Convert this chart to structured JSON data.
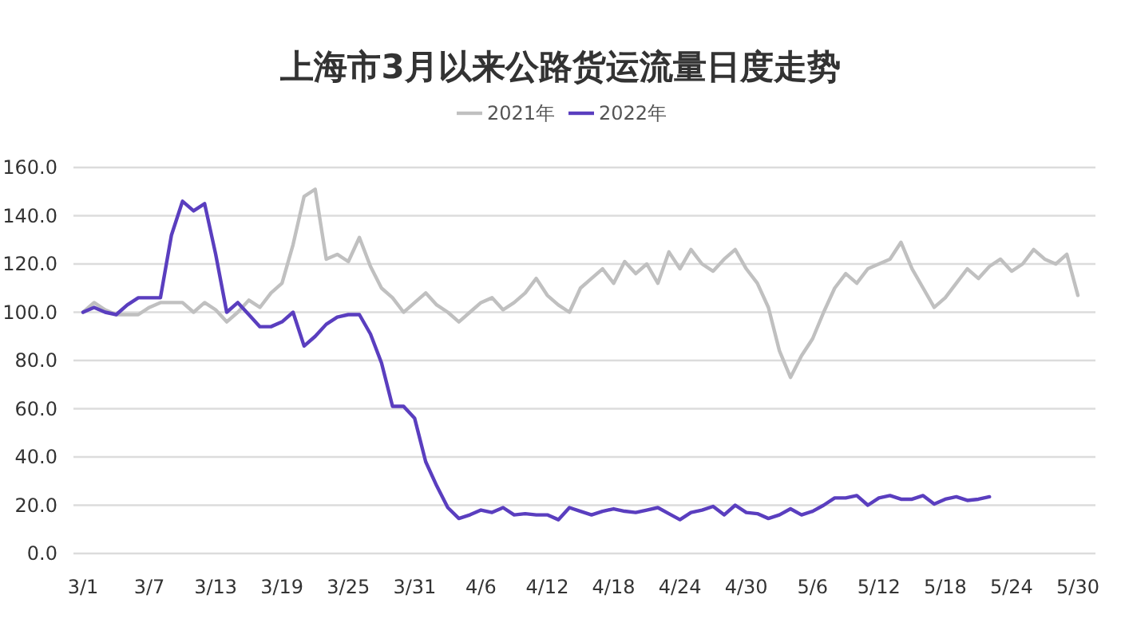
{
  "chart_data": {
    "type": "line",
    "title": "上海市3月以来公路货运流量日度走势",
    "categories": [
      "3/1",
      null,
      null,
      null,
      null,
      null,
      "3/7",
      null,
      null,
      null,
      null,
      null,
      "3/13",
      null,
      null,
      null,
      null,
      null,
      "3/19",
      null,
      null,
      null,
      null,
      null,
      "3/25",
      null,
      null,
      null,
      null,
      null,
      "3/31",
      null,
      null,
      null,
      null,
      null,
      "4/6",
      null,
      null,
      null,
      null,
      null,
      "4/12",
      null,
      null,
      null,
      null,
      null,
      "4/18",
      null,
      null,
      null,
      null,
      null,
      "4/24",
      null,
      null,
      null,
      null,
      null,
      "4/30",
      null,
      null,
      null,
      null,
      null,
      "5/6",
      null,
      null,
      null,
      null,
      null,
      "5/12",
      null,
      null,
      null,
      null,
      null,
      "5/18",
      null,
      null,
      null,
      null,
      null,
      "5/24",
      null,
      null,
      null,
      null,
      null,
      "5/30"
    ],
    "series": [
      {
        "name": "2021年",
        "color": "#c0c0c0",
        "values": [
          100,
          104,
          101,
          99,
          99,
          99,
          102,
          104,
          104,
          104,
          100,
          104,
          101,
          96,
          100,
          105,
          102,
          108,
          112,
          128,
          148,
          151,
          122,
          124,
          121,
          131,
          119,
          110,
          106,
          100,
          104,
          108,
          103,
          100,
          96,
          100,
          104,
          106,
          101,
          104,
          108,
          114,
          107,
          103,
          100,
          110,
          114,
          118,
          112,
          121,
          116,
          120,
          112,
          125,
          118,
          126,
          120,
          117,
          122,
          126,
          118,
          112,
          102,
          84,
          73,
          82,
          89,
          100,
          110,
          116,
          112,
          118,
          120,
          122,
          129,
          118,
          110,
          102,
          106,
          112,
          118,
          114,
          119,
          122,
          117,
          120,
          126,
          122,
          120,
          124,
          107
        ]
      },
      {
        "name": "2022年",
        "color": "#5a3ebf",
        "values": [
          100,
          102,
          100,
          99,
          103,
          106,
          106,
          106,
          132,
          146,
          142,
          145,
          124,
          100,
          104,
          99,
          94,
          94,
          96,
          100,
          86,
          90,
          95,
          98,
          99,
          99,
          91,
          79,
          61,
          61,
          56,
          38,
          28,
          19,
          14.5,
          16,
          18,
          17,
          19,
          16,
          16.5,
          16,
          16,
          14,
          19,
          17.5,
          16,
          17.5,
          18.5,
          17.5,
          17,
          18,
          19,
          16.5,
          14,
          17,
          18,
          19.5,
          16,
          20,
          17,
          16.5,
          14.5,
          16,
          18.5,
          16,
          17.5,
          20,
          23,
          23,
          24,
          20,
          23,
          24,
          22.5,
          22.5,
          24,
          20.5,
          22.5,
          23.5,
          22,
          22.5,
          23.5,
          null,
          null,
          null,
          null,
          null,
          null,
          null,
          null
        ]
      }
    ],
    "ylim": [
      0,
      160
    ],
    "yticks": [
      {
        "value": 0,
        "label": "0.0"
      },
      {
        "value": 20,
        "label": "20.0"
      },
      {
        "value": 40,
        "label": "40.0"
      },
      {
        "value": 60,
        "label": "60.0"
      },
      {
        "value": 80,
        "label": "80.0"
      },
      {
        "value": 100,
        "label": "100.0"
      },
      {
        "value": 120,
        "label": "120.0"
      },
      {
        "value": 140,
        "label": "140.0"
      },
      {
        "value": 160,
        "label": "160.0"
      }
    ],
    "grid": "y",
    "legend": "top"
  }
}
